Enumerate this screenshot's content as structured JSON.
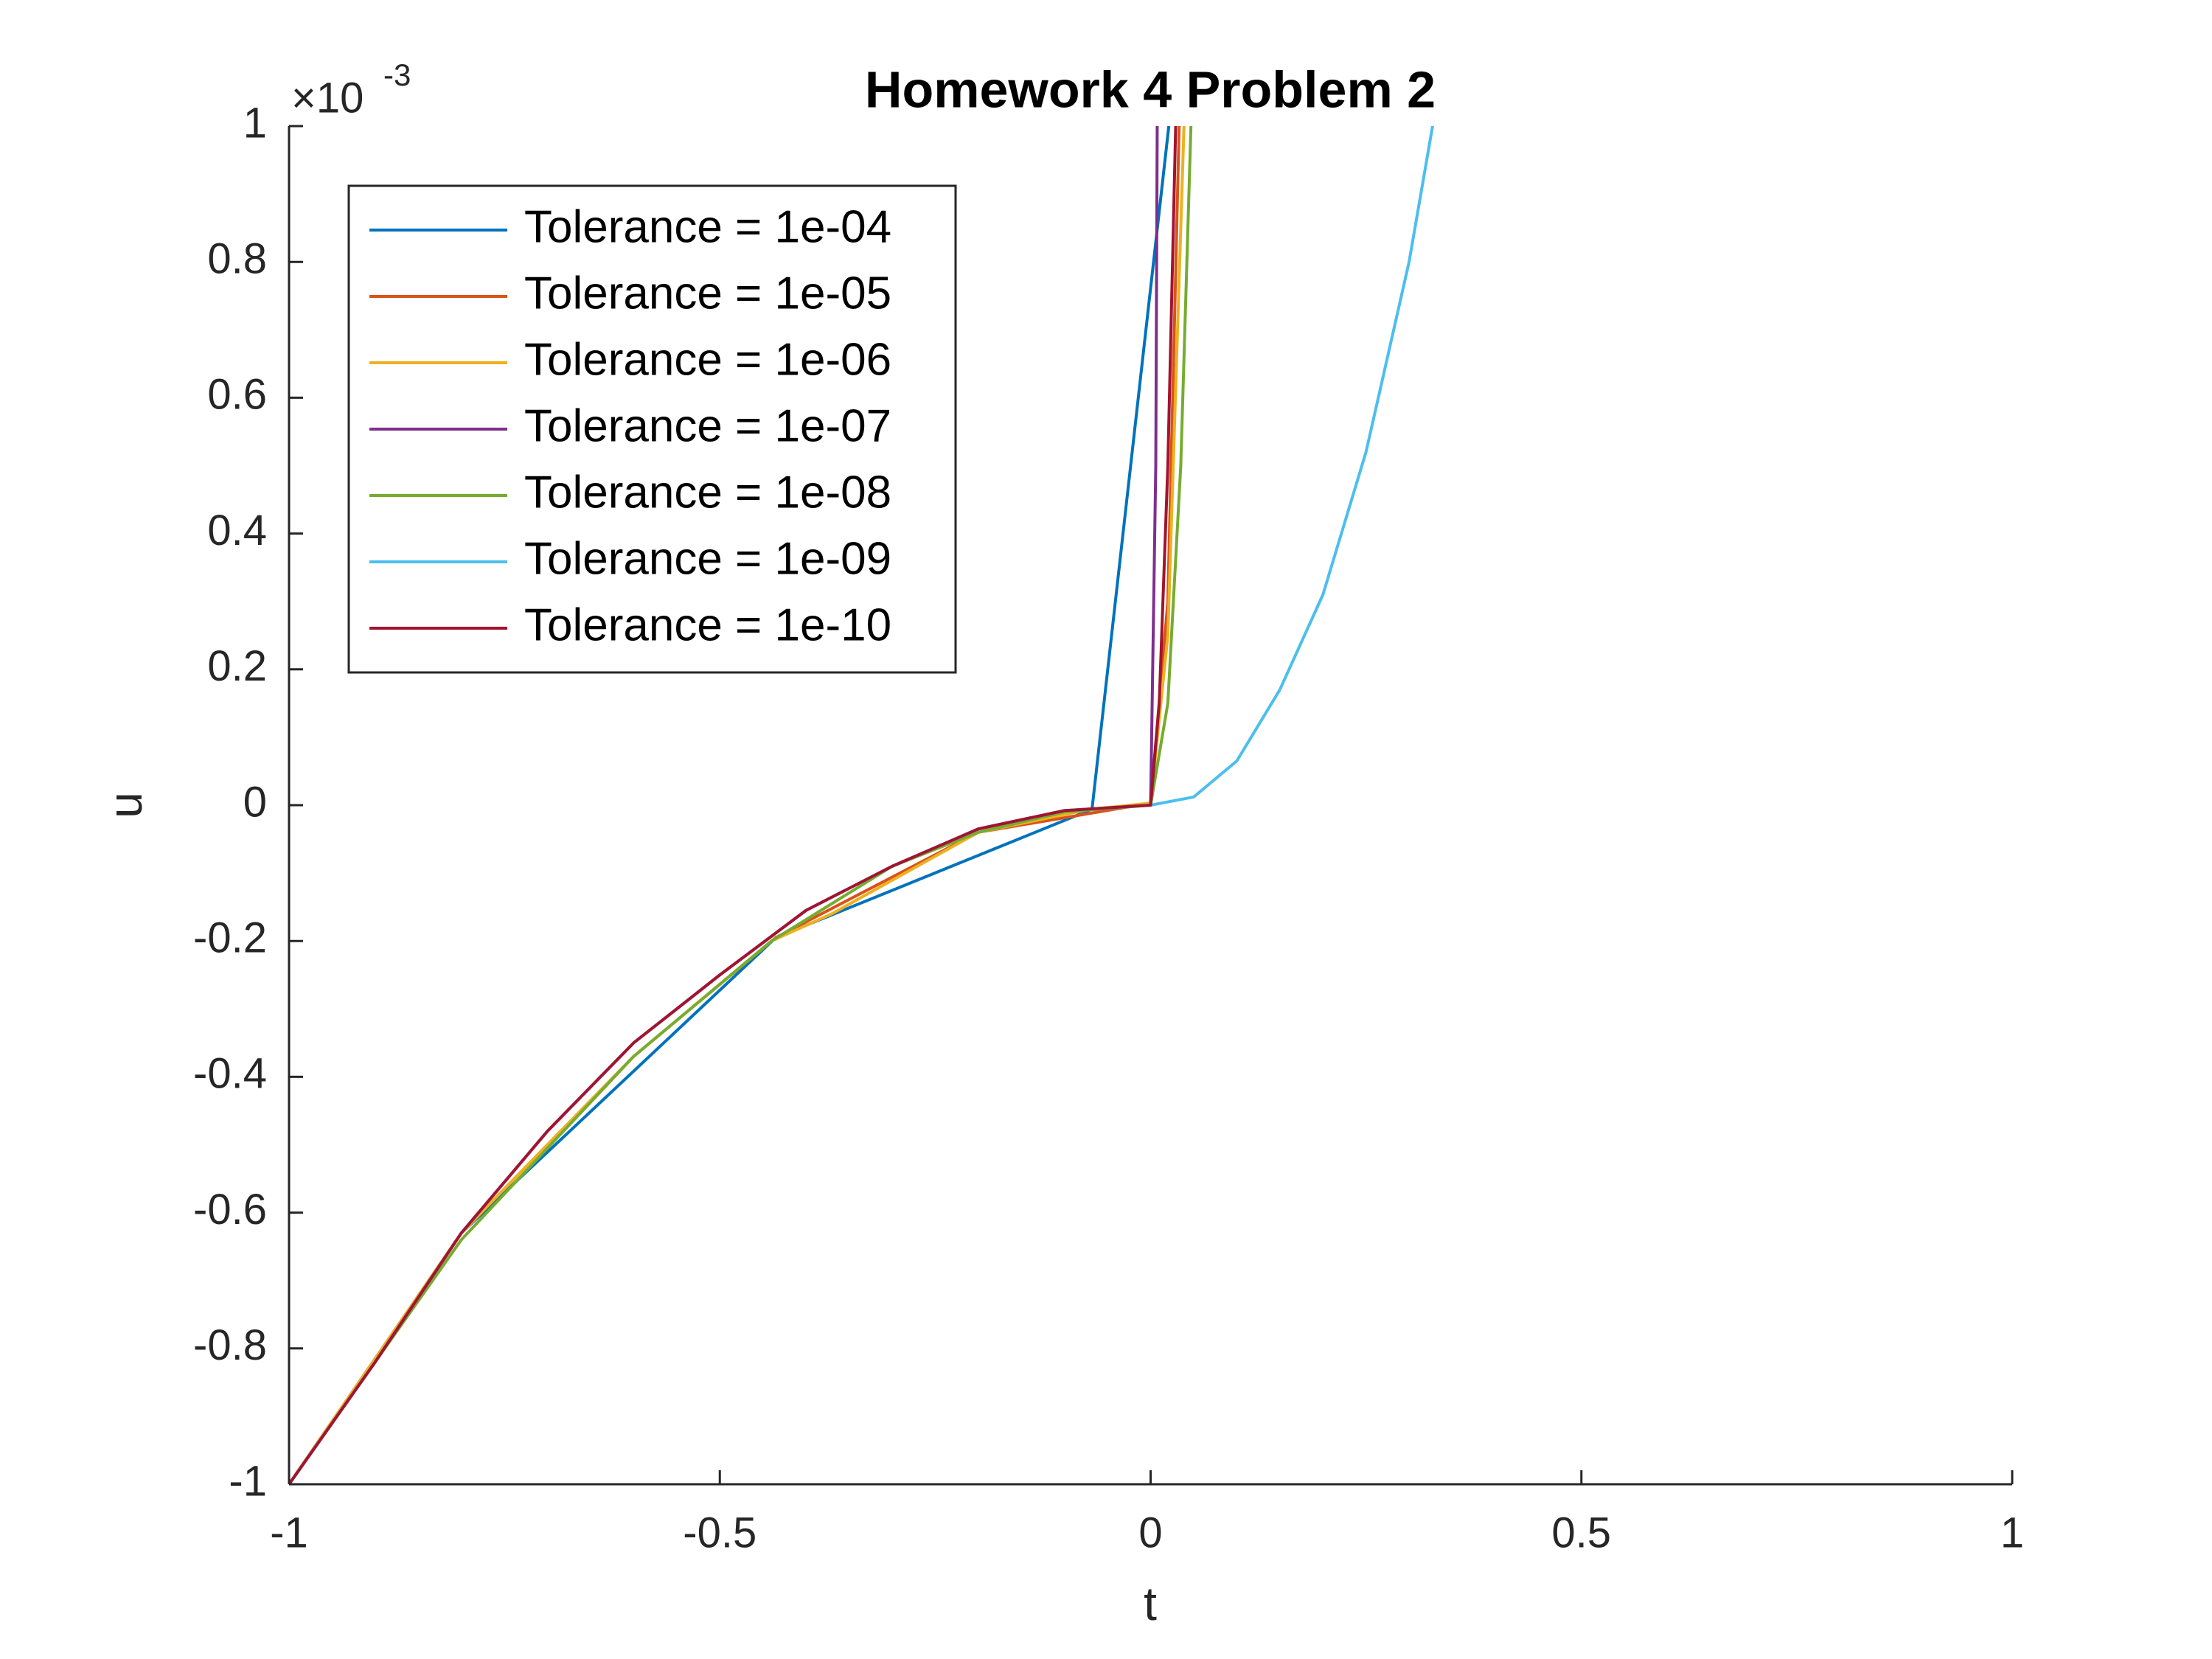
{
  "chart_data": {
    "type": "line",
    "title": "Homework 4 Problem 2",
    "x_label": "t",
    "y_label": "u",
    "y_multiplier": "×10",
    "y_exponent": "-3",
    "xlim": [
      -1,
      1
    ],
    "xticks": [
      -1,
      -0.5,
      0,
      0.5,
      1
    ],
    "ylim": [
      -1,
      1
    ],
    "yticks": [
      -1,
      -0.8,
      -0.6,
      -0.4,
      -0.2,
      0,
      0.2,
      0.4,
      0.6,
      0.8,
      1
    ],
    "legend": "top-left",
    "series": [
      {
        "name": "Tolerance = 1e-04",
        "color": "#0072BD",
        "x": [
          -1,
          -0.8,
          -0.435,
          -0.068,
          0.03
        ],
        "values": [
          -1,
          -0.63,
          -0.195,
          -0.006,
          1.1
        ]
      },
      {
        "name": "Tolerance = 1e-05",
        "color": "#D95319",
        "x": [
          -1,
          -0.8,
          -0.6,
          -0.435,
          -0.2,
          0,
          0.02,
          0.035
        ],
        "values": [
          -1,
          -0.63,
          -0.37,
          -0.195,
          -0.04,
          0.003,
          0.3,
          1.1
        ]
      },
      {
        "name": "Tolerance = 1e-06",
        "color": "#EDB120",
        "x": [
          -1,
          -0.8,
          -0.6,
          -0.44,
          -0.37,
          -0.2,
          -0.07,
          0,
          0.02,
          0.04
        ],
        "values": [
          -1,
          -0.63,
          -0.37,
          -0.2,
          -0.16,
          -0.04,
          -0.006,
          0.003,
          0.25,
          1.05
        ]
      },
      {
        "name": "Tolerance = 1e-07",
        "color": "#7E2F8E",
        "x": [
          -1,
          -0.9,
          -0.8,
          -0.7,
          -0.6,
          -0.5,
          -0.4,
          -0.3,
          -0.2,
          -0.1,
          0,
          0.006,
          0.008
        ],
        "values": [
          -1,
          -0.82,
          -0.63,
          -0.48,
          -0.35,
          -0.25,
          -0.155,
          -0.09,
          -0.035,
          -0.008,
          0,
          0.5,
          1.1
        ]
      },
      {
        "name": "Tolerance = 1e-08",
        "color": "#77AC30",
        "x": [
          -1,
          -0.8,
          -0.6,
          -0.44,
          -0.3,
          -0.2,
          -0.1,
          0,
          0.02,
          0.035,
          0.048
        ],
        "values": [
          -1,
          -0.64,
          -0.37,
          -0.2,
          -0.09,
          -0.04,
          -0.01,
          0,
          0.15,
          0.5,
          1.05
        ]
      },
      {
        "name": "Tolerance = 1e-09",
        "color": "#4DBEEE",
        "x": [
          -1,
          -0.9,
          -0.8,
          -0.7,
          -0.6,
          -0.5,
          -0.4,
          -0.3,
          -0.2,
          -0.1,
          0,
          0.05,
          0.1,
          0.15,
          0.2,
          0.25,
          0.3,
          0.33
        ],
        "values": [
          -1,
          -0.82,
          -0.63,
          -0.48,
          -0.35,
          -0.25,
          -0.155,
          -0.09,
          -0.035,
          -0.008,
          0,
          0.012,
          0.065,
          0.17,
          0.31,
          0.52,
          0.8,
          1.02
        ]
      },
      {
        "name": "Tolerance = 1e-10",
        "color": "#A2142F",
        "x": [
          -1,
          -0.9,
          -0.8,
          -0.7,
          -0.6,
          -0.5,
          -0.4,
          -0.3,
          -0.2,
          -0.1,
          0,
          0.01,
          0.02,
          0.03
        ],
        "values": [
          -1,
          -0.82,
          -0.63,
          -0.48,
          -0.35,
          -0.25,
          -0.155,
          -0.09,
          -0.035,
          -0.008,
          0,
          0.15,
          0.5,
          1.05
        ]
      }
    ]
  }
}
